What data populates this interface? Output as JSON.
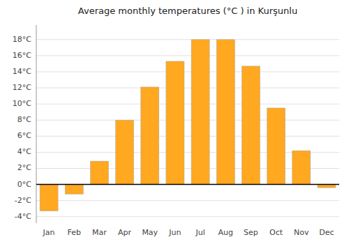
{
  "chart_data": {
    "type": "bar",
    "title": "Average monthly temperatures (°C ) in Kurşunlu",
    "categories": [
      "Jan",
      "Feb",
      "Mar",
      "Apr",
      "May",
      "Jun",
      "Jul",
      "Aug",
      "Sep",
      "Oct",
      "Nov",
      "Dec"
    ],
    "values": [
      -3.3,
      -1.2,
      2.9,
      8.0,
      12.1,
      15.3,
      18.0,
      18.0,
      14.7,
      9.5,
      4.2,
      -0.4
    ],
    "color": "#FFA820",
    "ylim": [
      -4.8,
      19.8
    ],
    "yticks": [
      {
        "value": -4,
        "label": "-4°C"
      },
      {
        "value": -2,
        "label": "-2°C"
      },
      {
        "value": 0,
        "label": "0°C"
      },
      {
        "value": 2,
        "label": "2°C"
      },
      {
        "value": 4,
        "label": "4°C"
      },
      {
        "value": 6,
        "label": "6°C"
      },
      {
        "value": 8,
        "label": "8°C"
      },
      {
        "value": 10,
        "label": "10°C"
      },
      {
        "value": 12,
        "label": "12°C"
      },
      {
        "value": 14,
        "label": "14°C"
      },
      {
        "value": 16,
        "label": "16°C"
      },
      {
        "value": 18,
        "label": "18°C"
      }
    ],
    "grid": true
  }
}
